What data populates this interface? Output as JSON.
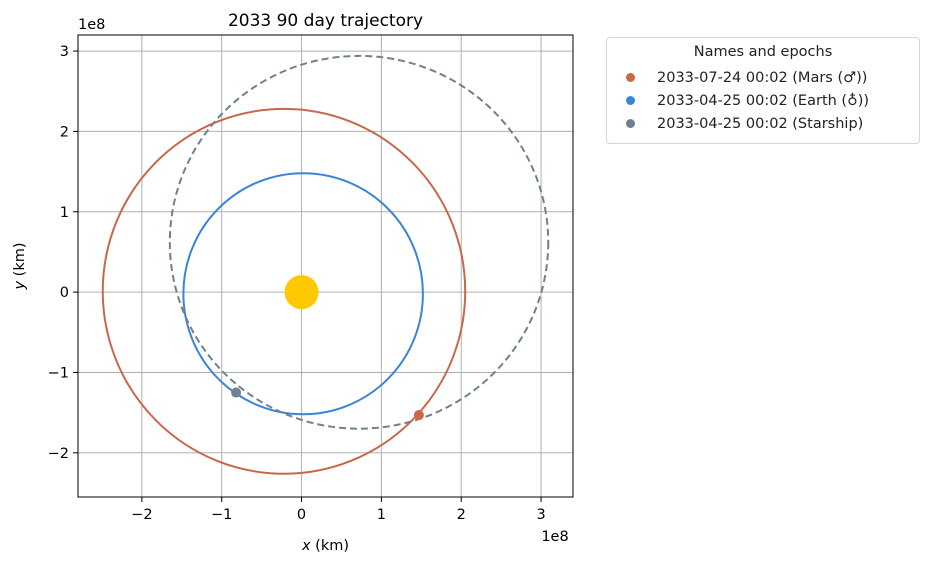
{
  "chart_data": {
    "type": "line",
    "title": "2033 90 day trajectory",
    "xlabel_var": "x",
    "xlabel_unit": " (km)",
    "ylabel_var": "y",
    "ylabel_unit": " (km)",
    "x_offset_label": "1e8",
    "y_offset_label": "1e8",
    "xlim": [
      -2.8,
      3.4
    ],
    "ylim": [
      -2.55,
      3.2
    ],
    "x_ticks": [
      -2,
      -1,
      0,
      1,
      2,
      3
    ],
    "y_ticks": [
      -2,
      -1,
      0,
      1,
      2,
      3
    ],
    "x_tick_labels": [
      "−2",
      "−1",
      "0",
      "1",
      "2",
      "3"
    ],
    "y_tick_labels": [
      "−2",
      "−1",
      "0",
      "1",
      "2",
      "3"
    ],
    "grid": true,
    "sun": {
      "x": 0,
      "y": 0,
      "color": "#FFC800"
    },
    "orbits": [
      {
        "key": "mars",
        "color": "#C8684A",
        "style": "solid",
        "cx": -0.22,
        "cy": 0.01,
        "rx": 2.27,
        "ry": 2.27
      },
      {
        "key": "earth",
        "color": "#3A85D5",
        "style": "solid",
        "cx": 0.02,
        "cy": -0.02,
        "rx": 1.5,
        "ry": 1.5
      },
      {
        "key": "starship",
        "color": "#708090",
        "style": "dashed",
        "cx": 0.72,
        "cy": 0.62,
        "rx": 2.37,
        "ry": 2.32
      }
    ],
    "points": [
      {
        "key": "mars",
        "x": 1.47,
        "y": -1.53,
        "color": "#C8684A"
      },
      {
        "key": "starship",
        "x": -0.82,
        "y": -1.25,
        "color": "#708090"
      }
    ]
  },
  "legend": {
    "title": "Names and epochs",
    "items": [
      {
        "label": "2033-07-24 00:02 (Mars (♂))",
        "color": "#C8684A"
      },
      {
        "label": "2033-04-25 00:02 (Earth (♁))",
        "color": "#3A85D5"
      },
      {
        "label": "2033-04-25 00:02 (Starship)",
        "color": "#708090"
      }
    ]
  }
}
